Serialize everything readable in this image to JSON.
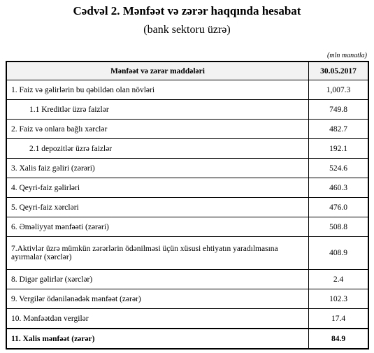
{
  "header": {
    "title": "Cədvəl 2. Mənfəət və zərər haqqında hesabat",
    "subtitle": "(bank sektoru üzrə)"
  },
  "table": {
    "unit": "(mln manatla)",
    "columns": [
      "Mənfəət və zərər maddələri",
      "30.05.2017"
    ],
    "rows": [
      [
        "1. Faiz və gəlirlərin bu qəbildən olan növləri",
        "1,007.3"
      ],
      [
        "1.1 Kreditlər üzrə faizlər",
        "749.8"
      ],
      [
        "2. Faiz və onlara bağlı xərclər",
        "482.7"
      ],
      [
        "2.1 depozitlər üzrə faizlər",
        "192.1"
      ],
      [
        "3. Xalis faiz gəliri (zərəri)",
        "524.6"
      ],
      [
        "4. Qeyri-faiz gəlirləri",
        "460.3"
      ],
      [
        "5. Qeyri-faiz xərcləri",
        "476.0"
      ],
      [
        "6. Əməliyyat mənfəəti (zərəri)",
        "508.8"
      ],
      [
        "7.Aktivlər üzrə mümkün zərərlərin ödənilməsi üçün xüsusi ehtiyatın yaradılmasına ayırmalar (xərclər)",
        "408.9"
      ],
      [
        "8. Digər gəlirlər (xərclər)",
        "2.4"
      ],
      [
        "9. Vergilər ödənilənədək mənfəət (zərər)",
        "102.3"
      ],
      [
        "10. Mənfəətdən vergilər",
        "17.4"
      ],
      [
        "11. Xalis mənfəət (zərər)",
        "84.9"
      ]
    ]
  }
}
